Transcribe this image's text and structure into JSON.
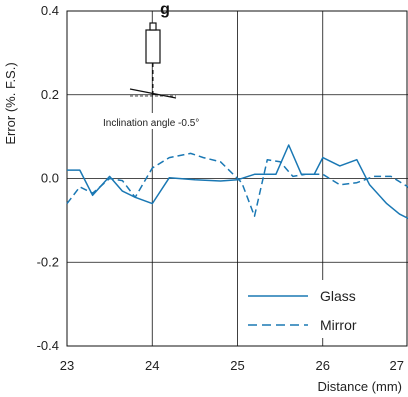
{
  "chart_data": {
    "type": "line",
    "title": "g",
    "xlabel": "Distance (mm)",
    "ylabel": "Error (%. F.S.)",
    "xlim": [
      23,
      27
    ],
    "ylim": [
      -0.4,
      0.4
    ],
    "x_ticks": [
      "23",
      "24",
      "25",
      "26",
      "27"
    ],
    "y_ticks": [
      "0.4",
      "0.2",
      "0.0",
      "-0.2",
      "-0.4"
    ],
    "grid": true,
    "legend_position": "bottom-right",
    "annotation": "Inclination angle -0.5°",
    "colors": {
      "line": "#1a78b4",
      "grid": "#111111"
    },
    "series": [
      {
        "name": "Glass",
        "style": "solid",
        "x": [
          23.0,
          23.15,
          23.3,
          23.5,
          23.65,
          23.8,
          24.0,
          24.2,
          24.5,
          24.8,
          25.0,
          25.2,
          25.45,
          25.6,
          25.75,
          25.9,
          26.0,
          26.2,
          26.4,
          26.55,
          26.75,
          26.9,
          27.05
        ],
        "values": [
          0.02,
          0.02,
          -0.04,
          0.005,
          -0.03,
          -0.045,
          -0.06,
          0.002,
          -0.003,
          -0.006,
          -0.003,
          0.01,
          0.01,
          0.08,
          0.01,
          0.01,
          0.05,
          0.03,
          0.045,
          -0.015,
          -0.06,
          -0.085,
          -0.1
        ]
      },
      {
        "name": "Mirror",
        "style": "dashed",
        "x": [
          23.0,
          23.15,
          23.3,
          23.5,
          23.65,
          23.8,
          24.0,
          24.2,
          24.45,
          24.6,
          24.8,
          25.05,
          25.2,
          25.35,
          25.5,
          25.65,
          25.8,
          26.0,
          26.2,
          26.4,
          26.6,
          26.8,
          27.0,
          27.1
        ],
        "values": [
          -0.06,
          -0.02,
          -0.035,
          0.0,
          -0.005,
          -0.045,
          0.025,
          0.05,
          0.06,
          0.05,
          0.04,
          -0.01,
          -0.09,
          0.045,
          0.04,
          0.005,
          0.01,
          0.01,
          -0.015,
          -0.01,
          0.005,
          0.005,
          -0.02,
          -0.05
        ]
      }
    ]
  }
}
